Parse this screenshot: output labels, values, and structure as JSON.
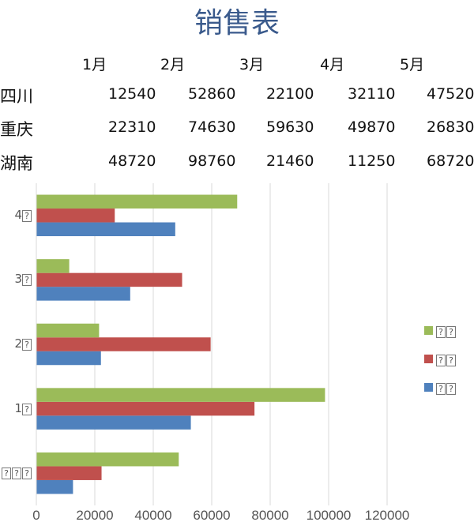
{
  "title": "销售表",
  "table": {
    "headers": [
      "1月",
      "2月",
      "3月",
      "4月",
      "5月"
    ],
    "rows": [
      {
        "label": "四川",
        "values": [
          "12540",
          "52860",
          "22100",
          "32110",
          "47520"
        ]
      },
      {
        "label": "重庆",
        "values": [
          "22310",
          "74630",
          "59630",
          "49870",
          "26830"
        ]
      },
      {
        "label": "湖南",
        "values": [
          "48720",
          "98760",
          "21460",
          "11250",
          "68720"
        ]
      }
    ]
  },
  "chart_data": {
    "type": "bar",
    "orientation": "horizontal",
    "categories": [
      "???",
      "1?",
      "2?",
      "3?",
      "4?"
    ],
    "series": [
      {
        "values": [
          12540,
          52860,
          22100,
          32110,
          47520
        ],
        "color": "#4f81bd"
      },
      {
        "values": [
          22310,
          74630,
          59630,
          49870,
          26830
        ],
        "color": "#c0504d"
      },
      {
        "values": [
          48720,
          98760,
          21460,
          11250,
          68720
        ],
        "color": "#9bbb59"
      }
    ],
    "legend_labels": [
      "??",
      "??",
      "??"
    ],
    "x_ticks": [
      "0",
      "20000",
      "40000",
      "60000",
      "80000",
      "100000",
      "120000"
    ],
    "xlim": [
      0,
      120000
    ],
    "grid": true,
    "legend_position": "right"
  }
}
